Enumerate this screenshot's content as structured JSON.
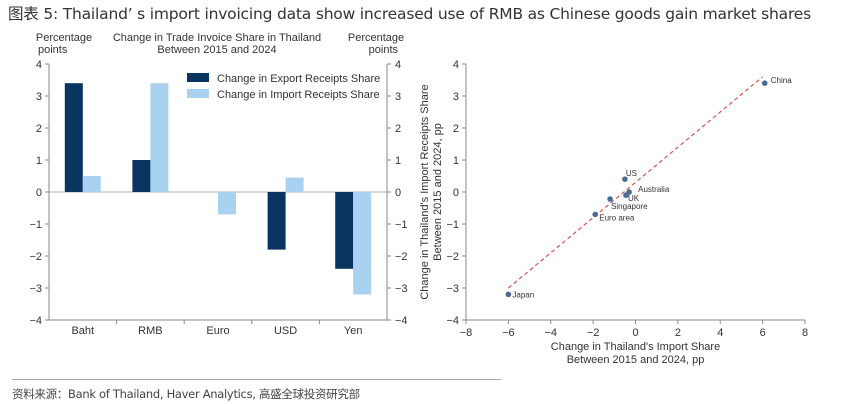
{
  "page": {
    "title": "图表 5: Thailand’ s import invoicing data show increased use of RMB as Chinese goods gain market shares",
    "footer": "资料来源：Bank of Thailand, Haver Analytics, 高盛全球投资研究部"
  },
  "colors": {
    "export": "#0b3561",
    "import": "#a9d2f0",
    "scatter_point": "#4a6b94",
    "trend_line": "#d9534f",
    "axis": "#8a8a8a"
  },
  "chart_data": [
    {
      "type": "bar",
      "title": "Change in Trade Invoice Share in Thailand",
      "subtitle": "Between 2015 and 2024",
      "ylabel_left": [
        "Percentage",
        "points"
      ],
      "ylabel_right": [
        "Percentage",
        "points"
      ],
      "xlabel": "",
      "ylim": [
        -4,
        4
      ],
      "yticks": [
        4,
        3,
        2,
        1,
        0,
        -1,
        -2,
        -3,
        -4
      ],
      "ytick_labels": [
        "4",
        "3",
        "2",
        "1",
        "0",
        "−1",
        "−2",
        "−3",
        "−4"
      ],
      "categories": [
        "Baht",
        "RMB",
        "Euro",
        "USD",
        "Yen"
      ],
      "series": [
        {
          "name": "Change in Export Receipts Share",
          "color_key": "export",
          "values": [
            3.4,
            1.0,
            0.0,
            -1.8,
            -2.4
          ]
        },
        {
          "name": "Change in Import Receipts Share",
          "color_key": "import",
          "values": [
            0.5,
            3.4,
            -0.7,
            0.45,
            -3.2
          ]
        }
      ],
      "legend_position": "top-right",
      "grid": false
    },
    {
      "type": "scatter",
      "title": "",
      "xlabel": [
        "Change in Thailand's Import Share",
        "Between 2015 and 2024, pp"
      ],
      "ylabel": [
        "Change in Thailand's Import Receipts Share",
        "Between 2015 and 2024, pp"
      ],
      "xlim": [
        -8,
        8
      ],
      "ylim": [
        -4,
        4
      ],
      "xticks": [
        -8,
        -6,
        -4,
        -2,
        0,
        2,
        4,
        6,
        8
      ],
      "xtick_labels": [
        "−8",
        "−6",
        "−4",
        "−2",
        "0",
        "2",
        "4",
        "6",
        "8"
      ],
      "yticks": [
        4,
        3,
        2,
        1,
        0,
        -1,
        -2,
        -3,
        -4
      ],
      "ytick_labels": [
        "4",
        "3",
        "2",
        "1",
        "0",
        "−1",
        "−2",
        "−3",
        "−4"
      ],
      "points": [
        {
          "label": "China",
          "x": 6.1,
          "y": 3.4
        },
        {
          "label": "US",
          "x": -0.5,
          "y": 0.4
        },
        {
          "label": "Australia",
          "x": -0.3,
          "y": 0.0
        },
        {
          "label": "UK",
          "x": -0.45,
          "y": -0.1
        },
        {
          "label": "Singapore",
          "x": -1.2,
          "y": -0.22
        },
        {
          "label": "Euro area",
          "x": -1.9,
          "y": -0.7
        },
        {
          "label": "Japan",
          "x": -6.0,
          "y": -3.2
        }
      ],
      "trend_line": {
        "style": "dashed",
        "from": [
          -6.0,
          -3.0
        ],
        "to": [
          6.0,
          3.6
        ]
      },
      "grid": false
    }
  ]
}
